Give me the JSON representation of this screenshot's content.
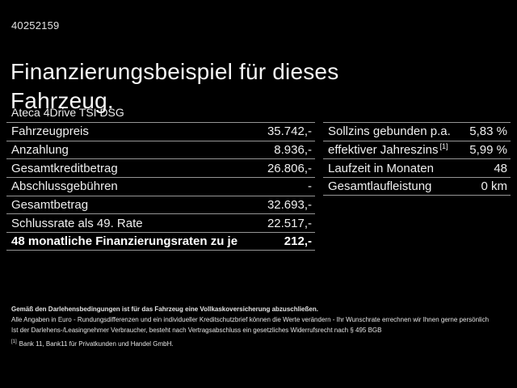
{
  "page": {
    "id_number": "40252159",
    "title": "Finanzierungsbeispiel für dieses Fahrzeug.",
    "subtitle": "Ateca 4Drive TSI DSG",
    "background_color": "#000000",
    "text_color": "#efefef",
    "separator_color": "#969696"
  },
  "left_table": {
    "rows": [
      {
        "label": "Fahrzeugpreis",
        "value": "35.742,-"
      },
      {
        "label": "Anzahlung",
        "value": "8.936,-"
      },
      {
        "label": "Gesamtkreditbetrag",
        "value": "26.806,-"
      },
      {
        "label": "Abschlussgebühren",
        "value": "-"
      },
      {
        "label": "Gesamtbetrag",
        "value": "32.693,-"
      },
      {
        "label": "Schlussrate als 49. Rate",
        "value": "22.517,-"
      },
      {
        "label": "48 monatliche Finanzierungsraten zu je",
        "value": "212,-"
      }
    ]
  },
  "right_table": {
    "rows": [
      {
        "label": "Sollzins gebunden p.a.",
        "value": "5,83 %"
      },
      {
        "label": "effektiver Jahreszins",
        "sup": "[1]",
        "value": "5,99 %"
      },
      {
        "label": "Laufzeit in Monaten",
        "value": "48"
      },
      {
        "label": "Gesamtlaufleistung",
        "value": "0 km"
      }
    ]
  },
  "fine_print": {
    "line1": "Gemäß den Darlehensbedingungen ist für das Fahrzeug eine Vollkaskoversicherung abzuschließen.",
    "line2": "Alle Angaben in Euro - Rundungsdifferenzen und ein individueller Kreditschutzbrief können die Werte verändern - Ihr Wunschrate errechnen wir Ihnen gerne persönlich",
    "line3": "Ist der Darlehens-/Leasingnehmer Verbraucher, besteht nach Vertragsabschluss ein gesetzliches Widerrufsrecht nach § 495 BGB",
    "footnote_sup": "[1]",
    "footnote_text": "Bank 11, Bank11 für Privatkunden und Handel GmbH."
  }
}
